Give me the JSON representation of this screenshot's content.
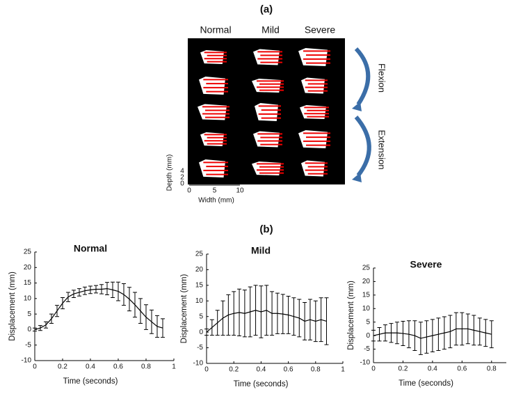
{
  "panel_a": {
    "label": "(a)",
    "columns": [
      "Normal",
      "Mild",
      "Severe"
    ],
    "flexion": "Flexion",
    "extension": "Extension",
    "depth_label": "Depth (mm)",
    "width_label": "Width (mm)",
    "depth_ticks": [
      0,
      2,
      4
    ],
    "width_ticks": [
      0,
      5,
      10
    ]
  },
  "panel_b": {
    "label": "(b)"
  },
  "chart_data": [
    {
      "type": "line",
      "title": "Normal",
      "x_label": "Time (seconds)",
      "y_label": "Displacement (mm)",
      "color": "#000000",
      "x": [
        0,
        0.04,
        0.08,
        0.12,
        0.16,
        0.2,
        0.24,
        0.28,
        0.32,
        0.36,
        0.4,
        0.44,
        0.48,
        0.52,
        0.56,
        0.6,
        0.64,
        0.68,
        0.72,
        0.76,
        0.8,
        0.84,
        0.88,
        0.92
      ],
      "values": [
        0,
        0.5,
        1.5,
        3.5,
        6,
        8.5,
        10.5,
        11.5,
        12,
        12.5,
        12.8,
        13,
        13,
        13.2,
        12.8,
        12.3,
        11.3,
        9.8,
        8,
        6,
        4,
        2.5,
        1,
        0.5
      ],
      "errors": [
        0.5,
        0.8,
        1,
        1.5,
        1.8,
        1.8,
        1.5,
        1.2,
        1.2,
        1.2,
        1.2,
        1.2,
        1.5,
        2,
        2.5,
        3,
        3.5,
        3.8,
        4,
        4,
        4,
        3.8,
        3.5,
        3
      ],
      "xlim": [
        0,
        1
      ],
      "xticks": [
        0,
        0.2,
        0.4,
        0.6,
        0.8,
        1
      ],
      "ylim": [
        -10,
        25
      ],
      "yticks": [
        -10,
        -5,
        0,
        5,
        10,
        15,
        20,
        25
      ]
    },
    {
      "type": "line",
      "title": "Mild",
      "x_label": "Time (seconds)",
      "y_label": "Displacement (mm)",
      "color": "#000000",
      "x": [
        0,
        0.04,
        0.08,
        0.12,
        0.16,
        0.2,
        0.24,
        0.28,
        0.32,
        0.36,
        0.4,
        0.44,
        0.48,
        0.52,
        0.56,
        0.6,
        0.64,
        0.68,
        0.72,
        0.76,
        0.8,
        0.84,
        0.88
      ],
      "values": [
        0,
        1.5,
        3,
        4.5,
        5.5,
        6,
        6.3,
        6,
        6.5,
        7,
        6.5,
        7,
        6,
        6,
        5.8,
        5.5,
        5,
        4.5,
        3.5,
        4,
        3.5,
        4,
        3.5
      ],
      "errors": [
        1,
        2.5,
        4,
        5.5,
        6.5,
        7,
        7.5,
        7.5,
        8,
        8,
        8.3,
        8,
        7,
        6.5,
        6.3,
        6,
        6,
        6,
        6,
        6.5,
        6.5,
        7,
        7.5
      ],
      "xlim": [
        0,
        1
      ],
      "xticks": [
        0,
        0.2,
        0.4,
        0.6,
        0.8,
        1
      ],
      "ylim": [
        -10,
        25
      ],
      "yticks": [
        -10,
        -5,
        0,
        5,
        10,
        15,
        20,
        25
      ]
    },
    {
      "type": "line",
      "title": "Severe",
      "x_label": "Time (seconds)",
      "y_label": "Displacement (mm)",
      "color": "#000000",
      "x": [
        0,
        0.04,
        0.08,
        0.12,
        0.16,
        0.2,
        0.24,
        0.28,
        0.32,
        0.36,
        0.4,
        0.44,
        0.48,
        0.52,
        0.56,
        0.6,
        0.64,
        0.68,
        0.72,
        0.76,
        0.8
      ],
      "values": [
        0,
        0.5,
        1,
        1,
        1,
        0.8,
        0.5,
        0,
        -1,
        -0.5,
        0,
        0.5,
        1,
        1.5,
        2.5,
        2.5,
        2.5,
        2,
        1.5,
        1,
        0.5
      ],
      "errors": [
        2,
        2.5,
        3,
        3.5,
        4,
        4.5,
        5,
        5.5,
        6,
        6,
        6,
        6,
        6,
        6,
        6,
        6,
        5.5,
        5.5,
        5,
        5,
        5
      ],
      "xlim": [
        0,
        0.9
      ],
      "xticks": [
        0,
        0.2,
        0.4,
        0.6,
        0.8
      ],
      "ylim": [
        -10,
        25
      ],
      "yticks": [
        -10,
        -5,
        0,
        5,
        10,
        15,
        20,
        25
      ]
    }
  ]
}
